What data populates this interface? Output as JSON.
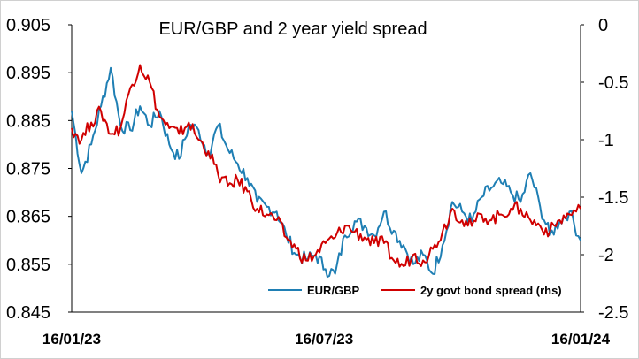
{
  "chart_data": {
    "type": "line",
    "title": "EUR/GBP and 2 year yield spread",
    "xlabel": "",
    "ylabel": "",
    "x_range": [
      "2023-01-16",
      "2024-01-16"
    ],
    "x_ticks": [
      "16/01/23",
      "16/07/23",
      "16/01/24"
    ],
    "ylim_left": [
      0.845,
      0.905
    ],
    "yticks_left": [
      "0.905",
      "0.895",
      "0.885",
      "0.875",
      "0.865",
      "0.855",
      "0.845"
    ],
    "ylim_right": [
      -2.5,
      0
    ],
    "yticks_right": [
      "0",
      "-0.5",
      "-1",
      "-1.5",
      "-2",
      "-2.5"
    ],
    "grid": false,
    "legend_position": "bottom-right",
    "colors": {
      "eurgbp": "#1f7fb4",
      "spread": "#d00000"
    },
    "series": [
      {
        "name": "EUR/GBP",
        "axis": "left",
        "x": [
          "2023-01-16",
          "2023-01-23",
          "2023-01-30",
          "2023-02-06",
          "2023-02-13",
          "2023-02-20",
          "2023-02-27",
          "2023-03-06",
          "2023-03-13",
          "2023-03-20",
          "2023-03-27",
          "2023-04-03",
          "2023-04-10",
          "2023-04-17",
          "2023-04-24",
          "2023-05-01",
          "2023-05-08",
          "2023-05-15",
          "2023-05-22",
          "2023-05-29",
          "2023-06-05",
          "2023-06-12",
          "2023-06-19",
          "2023-06-26",
          "2023-07-03",
          "2023-07-10",
          "2023-07-17",
          "2023-07-24",
          "2023-07-31",
          "2023-08-07",
          "2023-08-14",
          "2023-08-21",
          "2023-08-28",
          "2023-09-04",
          "2023-09-11",
          "2023-09-18",
          "2023-09-25",
          "2023-10-02",
          "2023-10-09",
          "2023-10-16",
          "2023-10-23",
          "2023-10-30",
          "2023-11-06",
          "2023-11-13",
          "2023-11-20",
          "2023-11-27",
          "2023-12-04",
          "2023-12-11",
          "2023-12-18",
          "2023-12-25",
          "2024-01-01",
          "2024-01-08",
          "2024-01-16"
        ],
        "values": [
          0.887,
          0.874,
          0.88,
          0.888,
          0.896,
          0.884,
          0.883,
          0.888,
          0.884,
          0.887,
          0.88,
          0.877,
          0.884,
          0.883,
          0.878,
          0.884,
          0.879,
          0.876,
          0.873,
          0.868,
          0.867,
          0.866,
          0.861,
          0.857,
          0.856,
          0.857,
          0.854,
          0.853,
          0.861,
          0.864,
          0.863,
          0.861,
          0.866,
          0.862,
          0.859,
          0.855,
          0.857,
          0.853,
          0.859,
          0.868,
          0.866,
          0.864,
          0.869,
          0.871,
          0.872,
          0.87,
          0.868,
          0.874,
          0.867,
          0.861,
          0.864,
          0.866,
          0.86
        ]
      },
      {
        "name": "2y govt bond spread (rhs)",
        "axis": "right",
        "x": [
          "2023-01-16",
          "2023-01-23",
          "2023-01-30",
          "2023-02-06",
          "2023-02-13",
          "2023-02-20",
          "2023-02-27",
          "2023-03-06",
          "2023-03-13",
          "2023-03-20",
          "2023-03-27",
          "2023-04-03",
          "2023-04-10",
          "2023-04-17",
          "2023-04-24",
          "2023-05-01",
          "2023-05-08",
          "2023-05-15",
          "2023-05-22",
          "2023-05-29",
          "2023-06-05",
          "2023-06-12",
          "2023-06-19",
          "2023-06-26",
          "2023-07-03",
          "2023-07-10",
          "2023-07-17",
          "2023-07-24",
          "2023-07-31",
          "2023-08-07",
          "2023-08-14",
          "2023-08-21",
          "2023-08-28",
          "2023-09-04",
          "2023-09-11",
          "2023-09-18",
          "2023-09-25",
          "2023-10-02",
          "2023-10-09",
          "2023-10-16",
          "2023-10-23",
          "2023-10-30",
          "2023-11-06",
          "2023-11-13",
          "2023-11-20",
          "2023-11-27",
          "2023-12-04",
          "2023-12-11",
          "2023-12-18",
          "2023-12-25",
          "2024-01-01",
          "2024-01-08",
          "2024-01-16"
        ],
        "values": [
          -0.9,
          -1.0,
          -0.85,
          -0.75,
          -0.95,
          -0.9,
          -0.55,
          -0.35,
          -0.5,
          -0.8,
          -0.9,
          -0.95,
          -0.85,
          -1.0,
          -1.1,
          -1.3,
          -1.4,
          -1.35,
          -1.45,
          -1.6,
          -1.65,
          -1.7,
          -1.85,
          -1.95,
          -2.05,
          -2.0,
          -1.9,
          -1.85,
          -1.75,
          -1.8,
          -1.85,
          -1.9,
          -1.9,
          -2.05,
          -2.1,
          -2.0,
          -2.05,
          -1.95,
          -1.8,
          -1.6,
          -1.7,
          -1.75,
          -1.65,
          -1.7,
          -1.65,
          -1.6,
          -1.6,
          -1.7,
          -1.75,
          -1.8,
          -1.7,
          -1.65,
          -1.6
        ]
      }
    ]
  }
}
